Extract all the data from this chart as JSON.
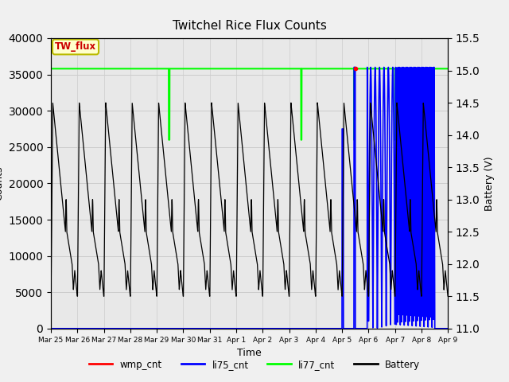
{
  "title": "Twitchel Rice Flux Counts",
  "xlabel": "Time",
  "ylabel_left": "Counts",
  "ylabel_right": "Battery (V)",
  "ylim_left": [
    0,
    40000
  ],
  "ylim_right": [
    11.0,
    15.5
  ],
  "yticks_left": [
    0,
    5000,
    10000,
    15000,
    20000,
    25000,
    30000,
    35000,
    40000
  ],
  "yticks_right": [
    11.0,
    11.5,
    12.0,
    12.5,
    13.0,
    13.5,
    14.0,
    14.5,
    15.0,
    15.5
  ],
  "background_color": "#f0f0f0",
  "plot_bg_color": "#e8e8e8",
  "annotation_box_text": "TW_flux",
  "annotation_box_facecolor": "#ffffcc",
  "annotation_box_edgecolor": "#bbbb00",
  "annotation_text_color": "#cc0000",
  "li77_color": "#00ff00",
  "li75_color": "#0000ff",
  "wmp_color": "#ff0000",
  "battery_color": "#000000",
  "li77_level": 35800,
  "grid_color": "#cccccc",
  "legend_items": [
    "wmp_cnt",
    "li75_cnt",
    "li77_cnt",
    "Battery"
  ],
  "legend_colors": [
    "#ff0000",
    "#0000ff",
    "#00ff00",
    "#000000"
  ],
  "xtick_labels": [
    "Mar 25",
    "Mar 26",
    "Mar 27",
    "Mar 28",
    "Mar 29",
    "Mar 30",
    "Mar 31",
    "Apr 1",
    "Apr 2",
    "Apr 3",
    "Apr 4",
    "Apr 5",
    "Apr 6",
    "Apr 7",
    "Apr 8",
    "Apr 9"
  ]
}
